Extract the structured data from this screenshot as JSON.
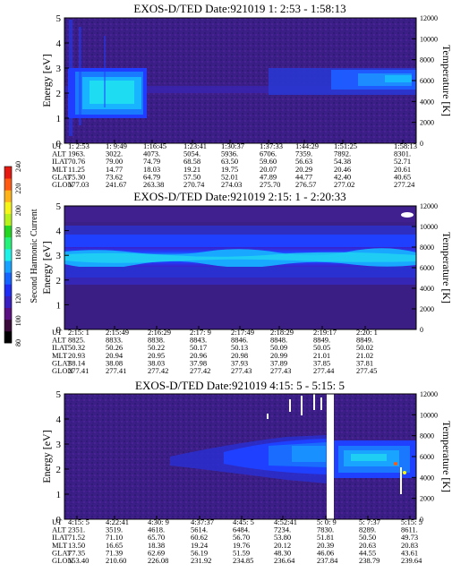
{
  "colorbar": {
    "label": "Second Harmonic Current",
    "ticks": [
      "80",
      "100",
      "120",
      "140",
      "160",
      "180",
      "200",
      "220",
      "240"
    ],
    "colors": [
      "#000000",
      "#3b0b3b",
      "#5a1080",
      "#3a1fc0",
      "#1f2cf2",
      "#1664ff",
      "#17a2ff",
      "#1ff0e8",
      "#25f27a",
      "#22d622",
      "#b8f21c",
      "#f5f51a",
      "#ffb31a",
      "#ff5a14",
      "#e41a12"
    ]
  },
  "chart_data": [
    {
      "type": "heatmap",
      "title": "EXOS-D/TED   Date:921019  1: 2:53 - 1:58:13",
      "ylabel": "Energy [eV]",
      "y2label": "Temperature [K]",
      "ylim": [
        0,
        5
      ],
      "y2lim": [
        0,
        12000
      ],
      "yticks": [
        "0",
        "1",
        "2",
        "3",
        "4",
        "5"
      ],
      "y2ticks": [
        "0",
        "2000",
        "4000",
        "6000",
        "8000",
        "10000",
        "12000"
      ],
      "orbit_labels": [
        "UT",
        "ALT",
        "ILAT",
        "MLT",
        "GLAT",
        "GLON"
      ],
      "orbit_columns": [
        [
          "1: 2:53",
          "1963.",
          "70.76",
          "11.25",
          "75.30",
          "177.03"
        ],
        [
          "1: 9:49",
          "3022.",
          "79.00",
          "14.77",
          "73.62",
          "241.67"
        ],
        [
          "1:16:45",
          "4073.",
          "74.79",
          "18.03",
          "64.79",
          "263.38"
        ],
        [
          "1:23:41",
          "5054.",
          "68.58",
          "19.21",
          "57.50",
          "270.74"
        ],
        [
          "1:30:37",
          "5936.",
          "63.50",
          "19.75",
          "52.01",
          "274.03"
        ],
        [
          "1:37:33",
          "6706.",
          "59.60",
          "20.07",
          "47.89",
          "275.70"
        ],
        [
          "1:44:29",
          "7359.",
          "56.63",
          "20.29",
          "44.77",
          "276.57"
        ],
        [
          "1:51:25",
          "7892.",
          "54.38",
          "20.46",
          "42.40",
          "277.02"
        ],
        [
          "1:58:13",
          "8301.",
          "52.71",
          "20.61",
          "40.65",
          "277.24"
        ]
      ]
    },
    {
      "type": "heatmap",
      "title": "EXOS-D/TED   Date:921019  2:15: 1 - 2:20:33",
      "ylabel": "Energy [eV]",
      "y2label": "Temperature [K]",
      "ylim": [
        0,
        5
      ],
      "y2lim": [
        0,
        12000
      ],
      "yticks": [
        "0",
        "1",
        "2",
        "3",
        "4",
        "5"
      ],
      "y2ticks": [
        "0",
        "2000",
        "4000",
        "6000",
        "8000",
        "10000",
        "12000"
      ],
      "orbit_labels": [
        "UT",
        "ALT",
        "ILAT",
        "MLT",
        "GLAT",
        "GLON"
      ],
      "orbit_columns": [
        [
          "2:15: 1",
          "8825.",
          "50.32",
          "20.93",
          "38.14",
          "277.41"
        ],
        [
          "2:15:49",
          "8833.",
          "50.26",
          "20.94",
          "38.08",
          "277.41"
        ],
        [
          "2:16:29",
          "8838.",
          "50.22",
          "20.95",
          "38.03",
          "277.42"
        ],
        [
          "2:17: 9",
          "8843.",
          "50.17",
          "20.96",
          "37.98",
          "277.42"
        ],
        [
          "2:17:49",
          "8846.",
          "50.13",
          "20.98",
          "37.93",
          "277.43"
        ],
        [
          "2:18:29",
          "8848.",
          "50.09",
          "20.99",
          "37.89",
          "277.43"
        ],
        [
          "2:19:17",
          "8849.",
          "50.05",
          "21.01",
          "37.85",
          "277.44"
        ],
        [
          "2:20: 1",
          "8849.",
          "50.02",
          "21.02",
          "37.81",
          "277.45"
        ]
      ]
    },
    {
      "type": "heatmap",
      "title": "EXOS-D/TED   Date:921019  4:15: 5 - 5:15: 5",
      "ylabel": "Energy [eV]",
      "y2label": "Temperature [K]",
      "ylim": [
        0,
        5
      ],
      "y2lim": [
        0,
        12000
      ],
      "yticks": [
        "0",
        "1",
        "2",
        "3",
        "4",
        "5"
      ],
      "y2ticks": [
        "0",
        "2000",
        "4000",
        "6000",
        "8000",
        "10000",
        "12000"
      ],
      "orbit_labels": [
        "UT",
        "ALT",
        "ILAT",
        "MLT",
        "GLAT",
        "GLON"
      ],
      "orbit_columns": [
        [
          "4:15: 5",
          "2351.",
          "71.52",
          "13.50",
          "77.35",
          "153.40"
        ],
        [
          "4:22:41",
          "3519.",
          "71.10",
          "16.65",
          "71.39",
          "210.60"
        ],
        [
          "4:30: 9",
          "4618.",
          "65.70",
          "18.38",
          "62.69",
          "226.08"
        ],
        [
          "4:37:37",
          "5614.",
          "60.62",
          "19.24",
          "56.19",
          "231.92"
        ],
        [
          "4:45: 5",
          "6484.",
          "56.70",
          "19.76",
          "51.59",
          "234.85"
        ],
        [
          "4:52:41",
          "7234.",
          "53.80",
          "20.12",
          "48.30",
          "236.64"
        ],
        [
          "5: 0: 9",
          "7830.",
          "51.81",
          "20.39",
          "46.06",
          "237.84"
        ],
        [
          "5: 7:37",
          "8289.",
          "50.50",
          "20.63",
          "44.55",
          "238.79"
        ],
        [
          "5:15: 5",
          "8611.",
          "49.73",
          "20.83",
          "43.61",
          "239.64"
        ]
      ]
    }
  ]
}
